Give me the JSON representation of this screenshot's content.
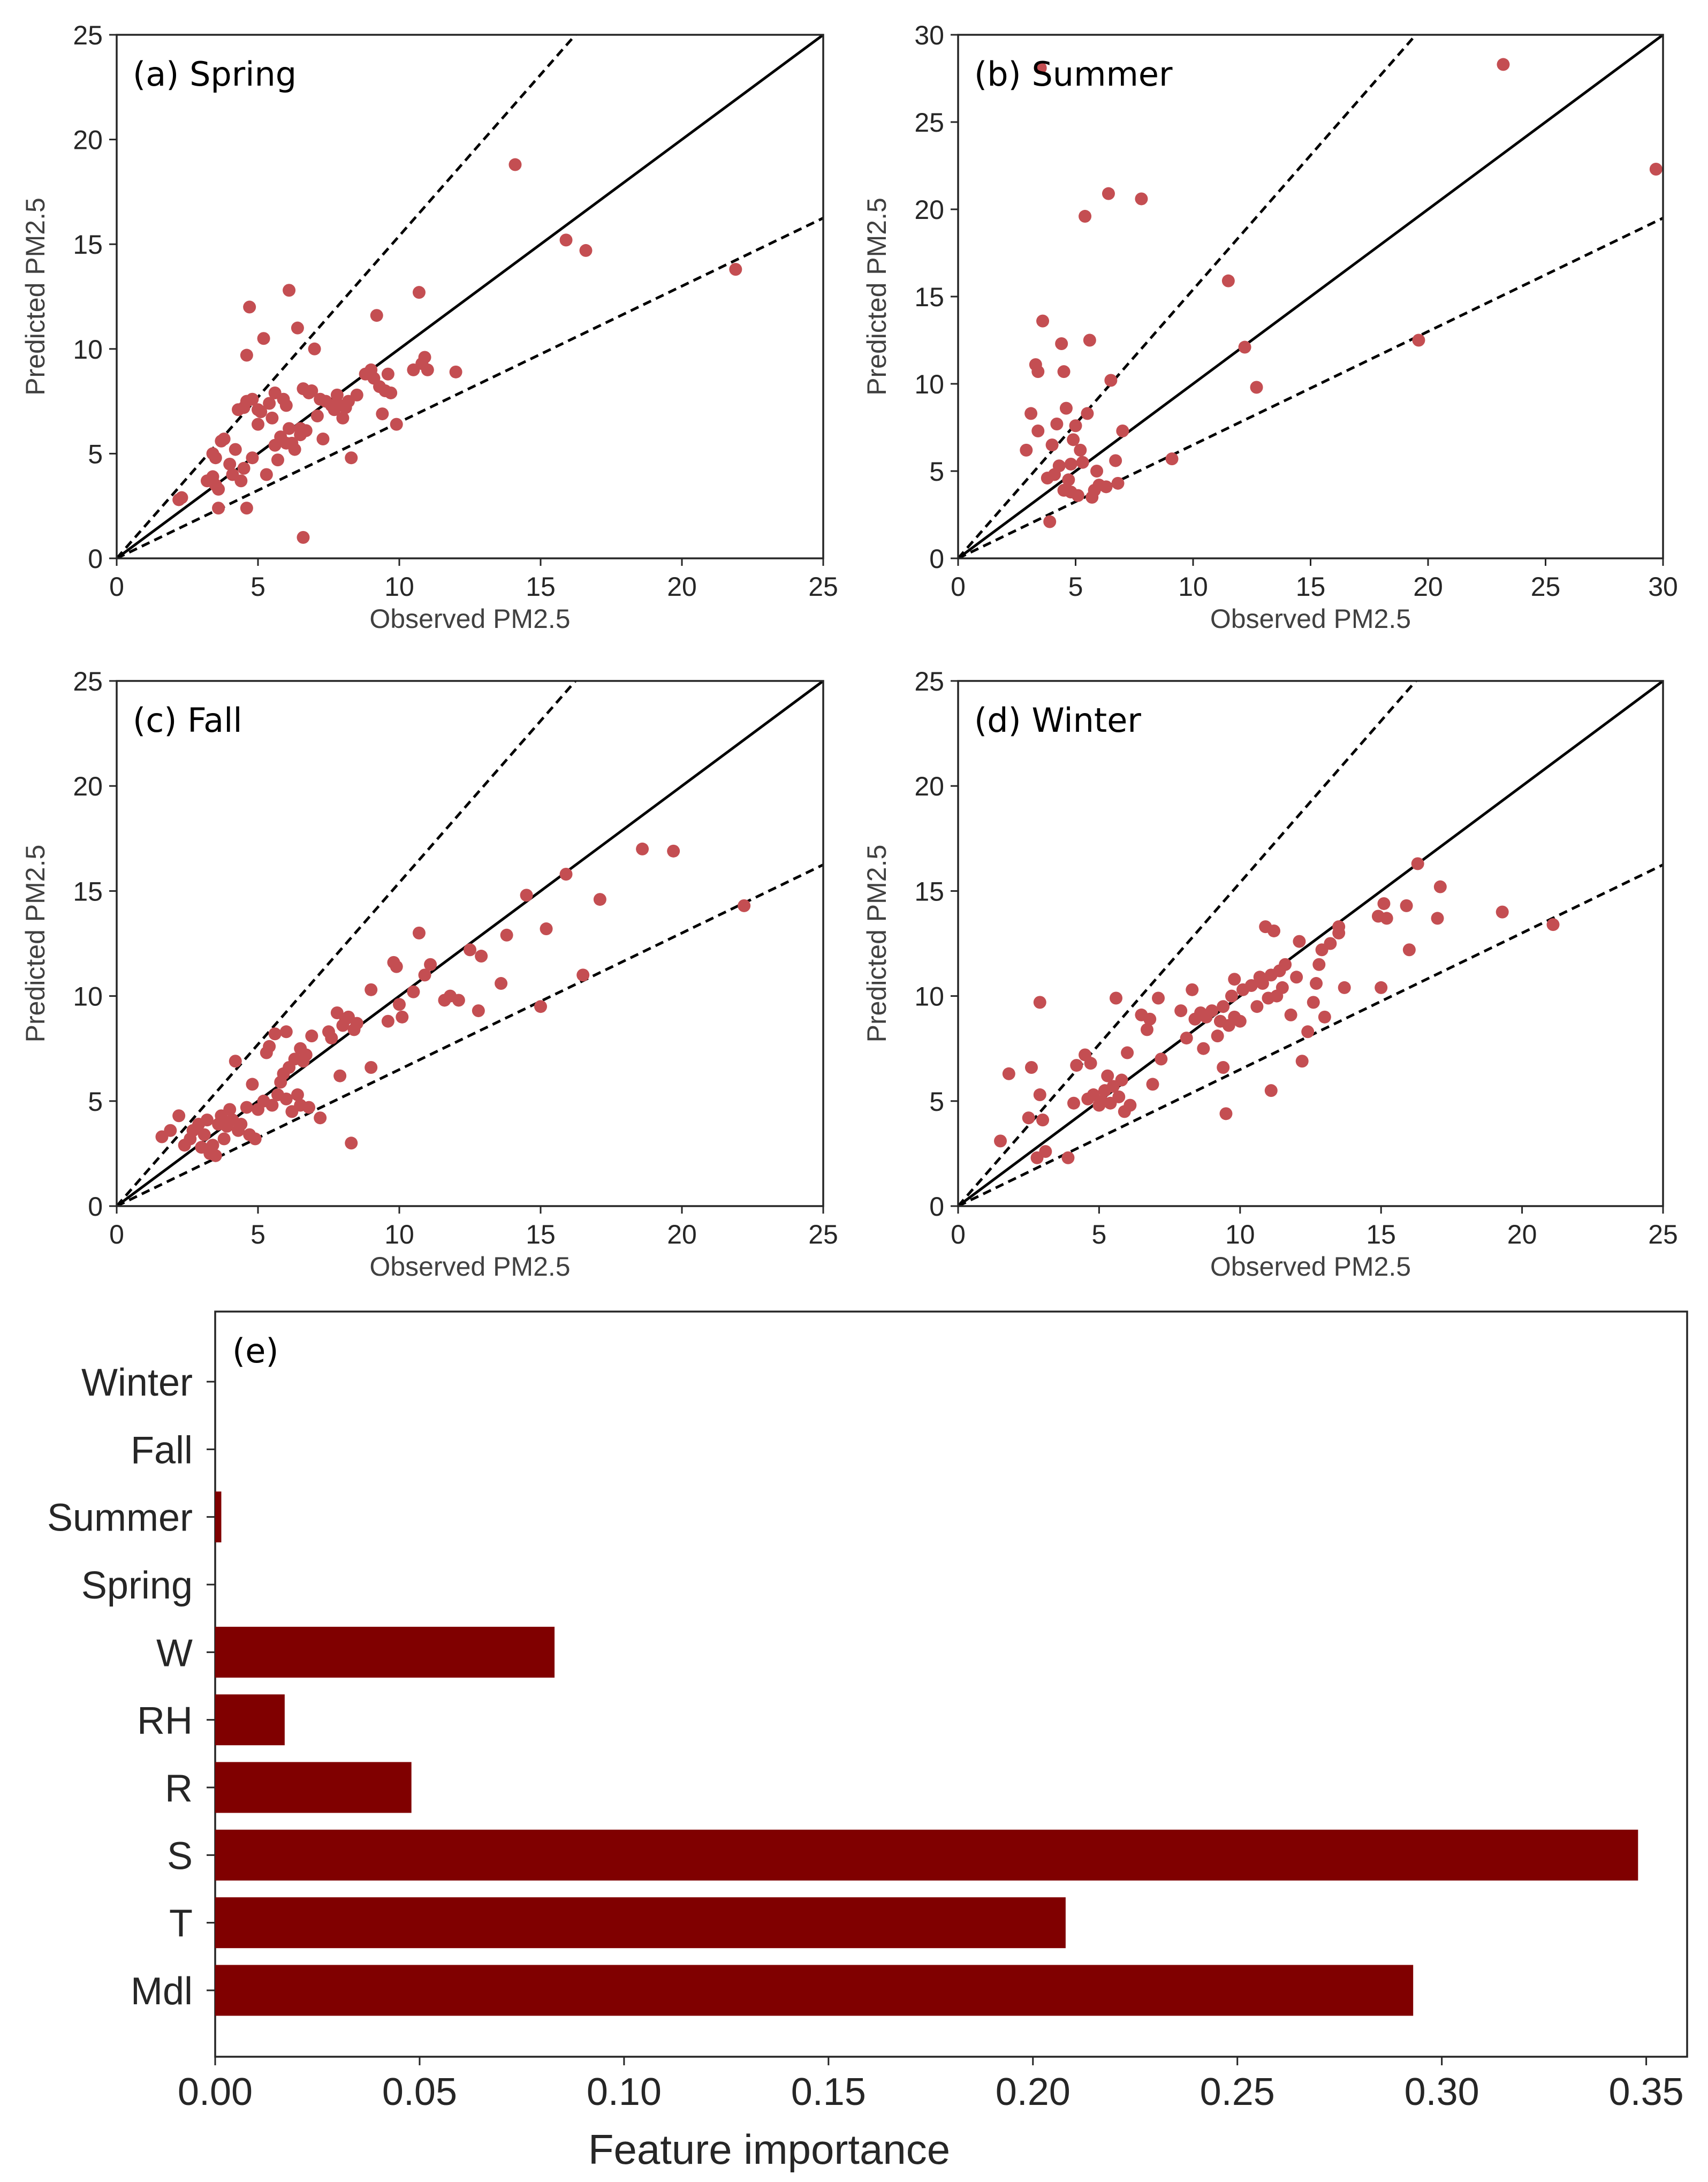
{
  "chart_data": [
    {
      "panel": "(a) Spring",
      "type": "scatter",
      "title": "(a) Spring",
      "xlabel": "Observed PM2.5",
      "ylabel": "Predicted PM2.5",
      "xlim": [
        0,
        25
      ],
      "ylim": [
        0,
        25
      ],
      "xticks": [
        0,
        5,
        10,
        15,
        20,
        25
      ],
      "yticks": [
        0,
        5,
        10,
        15,
        20,
        25
      ],
      "reference_lines": [
        {
          "style": "solid",
          "slope": 1
        },
        {
          "style": "dashed",
          "slope": 1.54
        },
        {
          "style": "dashed",
          "slope": 0.65
        }
      ],
      "marker_color": "#c44e52",
      "points": [
        [
          2.2,
          2.8
        ],
        [
          2.3,
          2.9
        ],
        [
          3.2,
          3.7
        ],
        [
          3.4,
          3.9
        ],
        [
          3.4,
          5.0
        ],
        [
          3.5,
          4.8
        ],
        [
          3.5,
          3.5
        ],
        [
          3.6,
          3.3
        ],
        [
          3.6,
          2.4
        ],
        [
          3.7,
          5.6
        ],
        [
          3.8,
          5.7
        ],
        [
          4.0,
          4.5
        ],
        [
          4.1,
          4.0
        ],
        [
          4.2,
          5.2
        ],
        [
          4.3,
          7.1
        ],
        [
          4.4,
          3.7
        ],
        [
          4.5,
          4.3
        ],
        [
          4.5,
          7.2
        ],
        [
          4.6,
          7.5
        ],
        [
          4.6,
          9.7
        ],
        [
          4.6,
          2.4
        ],
        [
          4.7,
          12.0
        ],
        [
          4.8,
          4.8
        ],
        [
          4.8,
          7.6
        ],
        [
          5.0,
          6.4
        ],
        [
          5.0,
          7.1
        ],
        [
          5.1,
          7.0
        ],
        [
          5.2,
          10.5
        ],
        [
          5.3,
          4.0
        ],
        [
          5.4,
          7.4
        ],
        [
          5.5,
          6.7
        ],
        [
          5.6,
          5.4
        ],
        [
          5.6,
          7.9
        ],
        [
          5.7,
          4.7
        ],
        [
          5.8,
          5.8
        ],
        [
          5.9,
          7.6
        ],
        [
          6.0,
          5.5
        ],
        [
          6.0,
          7.3
        ],
        [
          6.1,
          12.8
        ],
        [
          6.1,
          6.2
        ],
        [
          6.2,
          5.5
        ],
        [
          6.3,
          5.2
        ],
        [
          6.4,
          11.0
        ],
        [
          6.5,
          5.9
        ],
        [
          6.5,
          6.2
        ],
        [
          6.6,
          8.1
        ],
        [
          6.6,
          1.0
        ],
        [
          6.7,
          6.1
        ],
        [
          6.8,
          7.9
        ],
        [
          6.9,
          8.0
        ],
        [
          7.0,
          10.0
        ],
        [
          7.1,
          6.8
        ],
        [
          7.2,
          7.6
        ],
        [
          7.3,
          5.7
        ],
        [
          7.4,
          7.5
        ],
        [
          7.6,
          7.3
        ],
        [
          7.7,
          7.1
        ],
        [
          7.8,
          7.8
        ],
        [
          7.9,
          7.3
        ],
        [
          8.0,
          6.7
        ],
        [
          8.1,
          7.2
        ],
        [
          8.2,
          7.5
        ],
        [
          8.3,
          4.8
        ],
        [
          8.5,
          7.8
        ],
        [
          8.8,
          8.8
        ],
        [
          9.0,
          9.0
        ],
        [
          9.1,
          8.6
        ],
        [
          9.2,
          11.6
        ],
        [
          9.3,
          8.2
        ],
        [
          9.4,
          6.9
        ],
        [
          9.5,
          8.0
        ],
        [
          9.6,
          8.8
        ],
        [
          9.7,
          7.9
        ],
        [
          9.9,
          6.4
        ],
        [
          10.5,
          9.0
        ],
        [
          10.7,
          12.7
        ],
        [
          10.8,
          9.3
        ],
        [
          10.9,
          9.6
        ],
        [
          11.0,
          9.0
        ],
        [
          12.0,
          8.9
        ],
        [
          14.1,
          18.8
        ],
        [
          15.9,
          15.2
        ],
        [
          16.6,
          14.7
        ],
        [
          21.9,
          13.8
        ]
      ]
    },
    {
      "panel": "(b) Summer",
      "type": "scatter",
      "title": "(b) Summer",
      "xlabel": "Observed PM2.5",
      "ylabel": "Predicted PM2.5",
      "xlim": [
        0,
        30
      ],
      "ylim": [
        0,
        30
      ],
      "xticks": [
        0,
        5,
        10,
        15,
        20,
        25,
        30
      ],
      "yticks": [
        0,
        5,
        10,
        15,
        20,
        25,
        30
      ],
      "reference_lines": [
        {
          "style": "solid",
          "slope": 1
        },
        {
          "style": "dashed",
          "slope": 1.54
        },
        {
          "style": "dashed",
          "slope": 0.65
        }
      ],
      "marker_color": "#c44e52",
      "points": [
        [
          2.9,
          6.2
        ],
        [
          3.1,
          8.3
        ],
        [
          3.3,
          11.1
        ],
        [
          3.4,
          7.3
        ],
        [
          3.4,
          10.7
        ],
        [
          3.5,
          28.1
        ],
        [
          3.6,
          13.6
        ],
        [
          3.8,
          4.6
        ],
        [
          3.9,
          2.1
        ],
        [
          4.0,
          6.5
        ],
        [
          4.1,
          4.8
        ],
        [
          4.2,
          7.7
        ],
        [
          4.3,
          5.3
        ],
        [
          4.4,
          12.3
        ],
        [
          4.5,
          3.9
        ],
        [
          4.5,
          10.7
        ],
        [
          4.6,
          8.6
        ],
        [
          4.7,
          4.5
        ],
        [
          4.8,
          5.4
        ],
        [
          4.8,
          3.8
        ],
        [
          4.9,
          6.8
        ],
        [
          5.0,
          7.6
        ],
        [
          5.1,
          3.6
        ],
        [
          5.2,
          6.2
        ],
        [
          5.3,
          5.5
        ],
        [
          5.4,
          19.6
        ],
        [
          5.5,
          8.3
        ],
        [
          5.6,
          12.5
        ],
        [
          5.7,
          3.5
        ],
        [
          5.8,
          3.9
        ],
        [
          5.9,
          5.0
        ],
        [
          6.0,
          4.2
        ],
        [
          6.3,
          4.1
        ],
        [
          6.4,
          20.9
        ],
        [
          6.5,
          10.2
        ],
        [
          6.7,
          5.6
        ],
        [
          6.8,
          4.3
        ],
        [
          7.0,
          7.3
        ],
        [
          7.8,
          20.6
        ],
        [
          9.1,
          5.7
        ],
        [
          11.5,
          15.9
        ],
        [
          12.2,
          12.1
        ],
        [
          12.7,
          9.8
        ],
        [
          19.6,
          12.5
        ],
        [
          23.2,
          28.3
        ],
        [
          29.7,
          22.3
        ]
      ]
    },
    {
      "panel": "(c) Fall",
      "type": "scatter",
      "title": "(c) Fall",
      "xlabel": "Observed PM2.5",
      "ylabel": "Predicted PM2.5",
      "xlim": [
        0,
        25
      ],
      "ylim": [
        0,
        25
      ],
      "xticks": [
        0,
        5,
        10,
        15,
        20,
        25
      ],
      "yticks": [
        0,
        5,
        10,
        15,
        20,
        25
      ],
      "reference_lines": [
        {
          "style": "solid",
          "slope": 1
        },
        {
          "style": "dashed",
          "slope": 1.54
        },
        {
          "style": "dashed",
          "slope": 0.65
        }
      ],
      "marker_color": "#c44e52",
      "points": [
        [
          1.6,
          3.3
        ],
        [
          1.9,
          3.6
        ],
        [
          2.2,
          4.3
        ],
        [
          2.4,
          2.9
        ],
        [
          2.6,
          3.2
        ],
        [
          2.7,
          3.6
        ],
        [
          2.9,
          3.9
        ],
        [
          3.0,
          2.8
        ],
        [
          3.1,
          3.4
        ],
        [
          3.2,
          4.1
        ],
        [
          3.3,
          2.5
        ],
        [
          3.4,
          2.9
        ],
        [
          3.5,
          2.4
        ],
        [
          3.6,
          3.9
        ],
        [
          3.7,
          4.3
        ],
        [
          3.8,
          3.2
        ],
        [
          3.9,
          3.8
        ],
        [
          4.0,
          4.6
        ],
        [
          4.1,
          4.1
        ],
        [
          4.2,
          6.9
        ],
        [
          4.3,
          3.6
        ],
        [
          4.4,
          3.9
        ],
        [
          4.6,
          4.7
        ],
        [
          4.7,
          3.4
        ],
        [
          4.8,
          5.8
        ],
        [
          4.9,
          3.2
        ],
        [
          5.0,
          4.6
        ],
        [
          5.2,
          5.0
        ],
        [
          5.3,
          7.3
        ],
        [
          5.4,
          7.6
        ],
        [
          5.5,
          4.8
        ],
        [
          5.6,
          8.2
        ],
        [
          5.7,
          5.3
        ],
        [
          5.8,
          5.9
        ],
        [
          5.9,
          6.3
        ],
        [
          6.0,
          8.3
        ],
        [
          6.0,
          5.1
        ],
        [
          6.1,
          6.6
        ],
        [
          6.2,
          4.5
        ],
        [
          6.3,
          7.0
        ],
        [
          6.4,
          5.3
        ],
        [
          6.5,
          4.8
        ],
        [
          6.5,
          7.5
        ],
        [
          6.6,
          6.9
        ],
        [
          6.7,
          7.2
        ],
        [
          6.8,
          4.7
        ],
        [
          6.9,
          8.1
        ],
        [
          7.2,
          4.2
        ],
        [
          7.5,
          8.3
        ],
        [
          7.6,
          8.0
        ],
        [
          7.8,
          9.2
        ],
        [
          7.9,
          6.2
        ],
        [
          8.0,
          8.6
        ],
        [
          8.1,
          8.9
        ],
        [
          8.2,
          9.0
        ],
        [
          8.3,
          3.0
        ],
        [
          8.4,
          8.4
        ],
        [
          8.5,
          8.7
        ],
        [
          9.0,
          10.3
        ],
        [
          9.0,
          6.6
        ],
        [
          9.6,
          8.8
        ],
        [
          9.8,
          11.6
        ],
        [
          9.9,
          11.4
        ],
        [
          10.0,
          9.6
        ],
        [
          10.1,
          9.0
        ],
        [
          10.5,
          10.2
        ],
        [
          10.7,
          13.0
        ],
        [
          10.9,
          11.0
        ],
        [
          11.1,
          11.5
        ],
        [
          11.6,
          9.8
        ],
        [
          11.8,
          10.0
        ],
        [
          12.1,
          9.8
        ],
        [
          12.5,
          12.2
        ],
        [
          12.8,
          9.3
        ],
        [
          12.9,
          11.9
        ],
        [
          13.6,
          10.6
        ],
        [
          13.8,
          12.9
        ],
        [
          14.5,
          14.8
        ],
        [
          15.0,
          9.5
        ],
        [
          15.2,
          13.2
        ],
        [
          15.9,
          15.8
        ],
        [
          16.5,
          11.0
        ],
        [
          17.1,
          14.6
        ],
        [
          18.6,
          17.0
        ],
        [
          19.7,
          16.9
        ],
        [
          22.2,
          14.3
        ]
      ]
    },
    {
      "panel": "(d) Winter",
      "type": "scatter",
      "title": "(d) Winter",
      "xlabel": "Observed PM2.5",
      "ylabel": "Predicted PM2.5",
      "xlim": [
        0,
        25
      ],
      "ylim": [
        0,
        25
      ],
      "xticks": [
        0,
        5,
        10,
        15,
        20,
        25
      ],
      "yticks": [
        0,
        5,
        10,
        15,
        20,
        25
      ],
      "reference_lines": [
        {
          "style": "solid",
          "slope": 1
        },
        {
          "style": "dashed",
          "slope": 1.54
        },
        {
          "style": "dashed",
          "slope": 0.65
        }
      ],
      "marker_color": "#c44e52",
      "points": [
        [
          1.5,
          3.1
        ],
        [
          1.8,
          6.3
        ],
        [
          2.5,
          4.2
        ],
        [
          2.6,
          6.6
        ],
        [
          2.8,
          2.3
        ],
        [
          2.9,
          9.7
        ],
        [
          2.9,
          5.3
        ],
        [
          3.0,
          4.1
        ],
        [
          3.1,
          2.6
        ],
        [
          3.9,
          2.3
        ],
        [
          4.1,
          4.9
        ],
        [
          4.2,
          6.7
        ],
        [
          4.5,
          7.2
        ],
        [
          4.6,
          5.1
        ],
        [
          4.7,
          6.8
        ],
        [
          4.8,
          5.3
        ],
        [
          5.0,
          4.8
        ],
        [
          5.1,
          5.0
        ],
        [
          5.2,
          5.5
        ],
        [
          5.3,
          6.2
        ],
        [
          5.4,
          4.9
        ],
        [
          5.5,
          5.7
        ],
        [
          5.6,
          9.9
        ],
        [
          5.7,
          5.2
        ],
        [
          5.8,
          6.0
        ],
        [
          5.9,
          4.5
        ],
        [
          6.0,
          7.3
        ],
        [
          6.1,
          4.8
        ],
        [
          6.5,
          9.1
        ],
        [
          6.7,
          8.4
        ],
        [
          6.8,
          8.9
        ],
        [
          6.9,
          5.8
        ],
        [
          7.1,
          9.9
        ],
        [
          7.2,
          7.0
        ],
        [
          7.9,
          9.3
        ],
        [
          8.1,
          8.0
        ],
        [
          8.3,
          10.3
        ],
        [
          8.4,
          8.9
        ],
        [
          8.6,
          9.2
        ],
        [
          8.7,
          7.5
        ],
        [
          8.8,
          9.0
        ],
        [
          9.0,
          9.3
        ],
        [
          9.2,
          8.1
        ],
        [
          9.3,
          8.8
        ],
        [
          9.4,
          9.5
        ],
        [
          9.4,
          6.6
        ],
        [
          9.5,
          4.4
        ],
        [
          9.6,
          8.6
        ],
        [
          9.7,
          10.0
        ],
        [
          9.8,
          9.0
        ],
        [
          9.8,
          10.8
        ],
        [
          10.0,
          8.8
        ],
        [
          10.1,
          10.3
        ],
        [
          10.4,
          10.5
        ],
        [
          10.6,
          9.5
        ],
        [
          10.7,
          10.9
        ],
        [
          10.8,
          10.6
        ],
        [
          10.9,
          13.3
        ],
        [
          11.0,
          9.9
        ],
        [
          11.1,
          5.5
        ],
        [
          11.1,
          11.0
        ],
        [
          11.2,
          13.1
        ],
        [
          11.3,
          10.0
        ],
        [
          11.4,
          11.2
        ],
        [
          11.5,
          10.4
        ],
        [
          11.6,
          11.5
        ],
        [
          11.8,
          9.1
        ],
        [
          12.0,
          10.9
        ],
        [
          12.1,
          12.6
        ],
        [
          12.2,
          6.9
        ],
        [
          12.4,
          8.3
        ],
        [
          12.6,
          9.7
        ],
        [
          12.7,
          10.6
        ],
        [
          12.8,
          11.5
        ],
        [
          12.9,
          12.2
        ],
        [
          13.0,
          9.0
        ],
        [
          13.2,
          12.5
        ],
        [
          13.5,
          13.0
        ],
        [
          13.5,
          13.3
        ],
        [
          13.7,
          10.4
        ],
        [
          14.9,
          13.8
        ],
        [
          15.0,
          10.4
        ],
        [
          15.1,
          14.4
        ],
        [
          15.2,
          13.7
        ],
        [
          15.9,
          14.3
        ],
        [
          16.0,
          12.2
        ],
        [
          16.3,
          16.3
        ],
        [
          17.0,
          13.7
        ],
        [
          17.1,
          15.2
        ],
        [
          19.3,
          14.0
        ],
        [
          21.1,
          13.4
        ]
      ]
    },
    {
      "panel": "(e)",
      "type": "bar",
      "orientation": "horizontal",
      "title": "(e)",
      "xlabel": "Feature importance",
      "ylabel": "",
      "xlim": [
        0,
        0.36
      ],
      "xticks": [
        "0.00",
        "0.05",
        "0.10",
        "0.15",
        "0.20",
        "0.25",
        "0.30",
        "0.35"
      ],
      "bar_color": "#800000",
      "categories": [
        "Winter",
        "Fall",
        "Summer",
        "Spring",
        "W",
        "RH",
        "R",
        "S",
        "T",
        "Mdl"
      ],
      "values": [
        0.0,
        0.0,
        0.0015,
        0.0,
        0.083,
        0.017,
        0.048,
        0.348,
        0.208,
        0.293
      ]
    }
  ]
}
